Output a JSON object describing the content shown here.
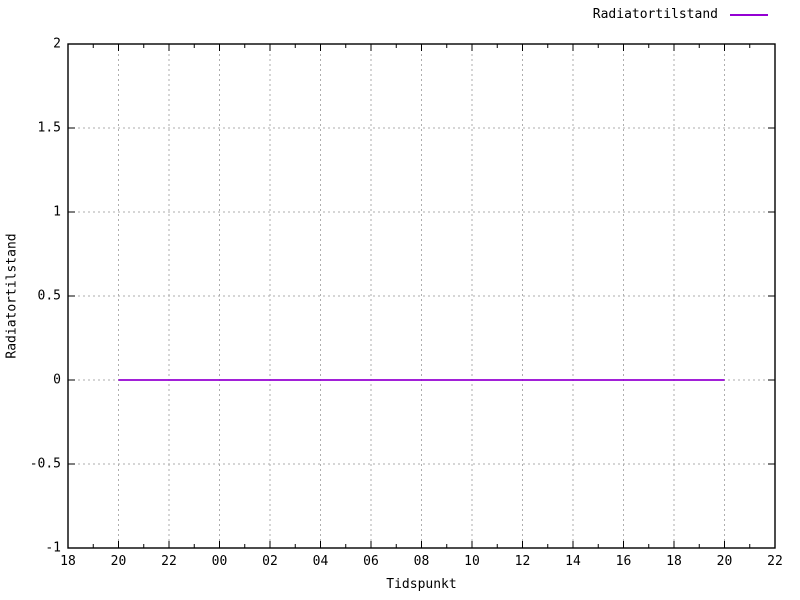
{
  "chart_data": {
    "type": "line",
    "title": "",
    "xlabel": "Tidspunkt",
    "ylabel": "Radiatortilstand",
    "legend": {
      "position": "top-right",
      "entries": [
        {
          "label": "Radiatortilstand",
          "color": "#9400d3"
        }
      ]
    },
    "x_axis": {
      "unit": "hour of day",
      "range_hours": [
        18,
        46
      ],
      "major_step_hours": 2,
      "minor_step_hours": 1,
      "tick_labels": [
        "18",
        "20",
        "22",
        "00",
        "02",
        "04",
        "06",
        "08",
        "10",
        "12",
        "14",
        "16",
        "18",
        "20",
        "22"
      ]
    },
    "y_axis": {
      "range": [
        -1,
        2
      ],
      "ticks": [
        -1,
        -0.5,
        0,
        0.5,
        1,
        1.5,
        2
      ],
      "tick_labels": [
        "-1",
        "-0.5",
        "0",
        "0.5",
        "1",
        "1.5",
        "2"
      ]
    },
    "grid": {
      "show": true,
      "style": "dotted",
      "color": "#aeaeae"
    },
    "series": [
      {
        "name": "Radiatortilstand",
        "color": "#9400d3",
        "points": [
          {
            "x_hours": 20,
            "y": 0
          },
          {
            "x_hours": 44,
            "y": 0
          }
        ]
      }
    ],
    "axis_color": "#000000"
  }
}
